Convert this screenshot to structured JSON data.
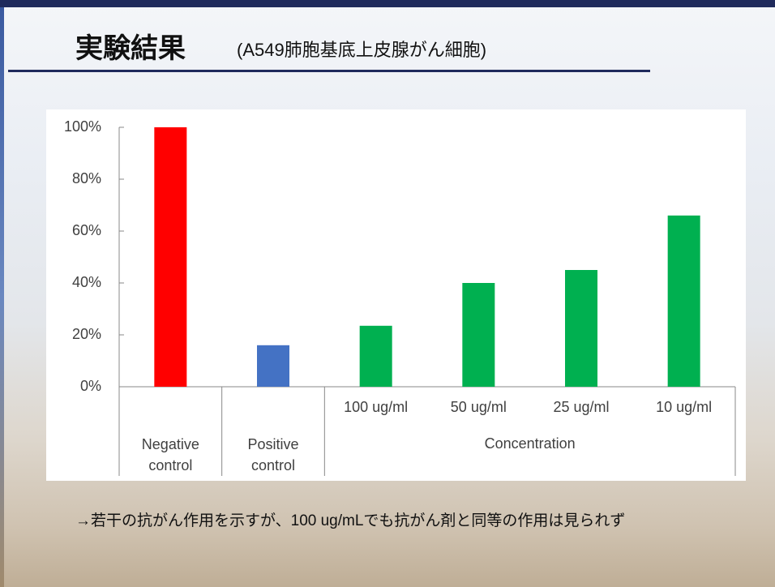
{
  "title": "実験結果",
  "subtitle": "(A549肺胞基底上皮腺がん細胞)",
  "chart_data": {
    "type": "bar",
    "categories": [
      "Negative control",
      "Positive control",
      "100 ug/ml",
      "50 ug/ml",
      "25 ug/ml",
      "10 ug/ml"
    ],
    "values": [
      100,
      16,
      23.5,
      40,
      45,
      66
    ],
    "colors": [
      "#ff0000",
      "#4472c4",
      "#00b050",
      "#00b050",
      "#00b050",
      "#00b050"
    ],
    "group_label": "Concentration",
    "ylim": [
      0,
      100
    ],
    "yticks": [
      {
        "value": 0,
        "label": "0%"
      },
      {
        "value": 20,
        "label": "20%"
      },
      {
        "value": 40,
        "label": "40%"
      },
      {
        "value": 60,
        "label": "60%"
      },
      {
        "value": 80,
        "label": "80%"
      },
      {
        "value": 100,
        "label": "100%"
      }
    ]
  },
  "note": "→若干の抗がん作用を示すが、100 ug/mLでも抗がん剤と同等の作用は見られず"
}
